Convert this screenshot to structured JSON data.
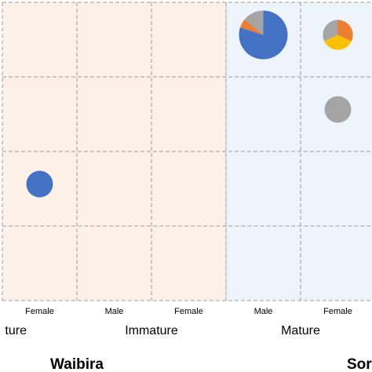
{
  "chart_data": {
    "type": "scatter",
    "subtype": "pie-bubble matrix",
    "columns": [
      {
        "label": "Female",
        "group": "Immature",
        "site": "Waibira",
        "background": "#fdf1e7"
      },
      {
        "label": "Male",
        "group": "Immature",
        "site": "Waibira",
        "background": "#fdf1e7"
      },
      {
        "label": "Female",
        "group": "Immature",
        "site": "Waibira",
        "background": "#fdf1e7"
      },
      {
        "label": "Male",
        "group": "Mature",
        "site": "Waibira",
        "background": "#eef4fb"
      },
      {
        "label": "Female",
        "group": "Mature",
        "site": "Waibira",
        "background": "#eef4fb"
      }
    ],
    "group_labels": [
      {
        "label": "ture",
        "columns": [
          0
        ]
      },
      {
        "label": "Immature",
        "columns": [
          1,
          2
        ]
      },
      {
        "label": "Mature",
        "columns": [
          3,
          4
        ]
      }
    ],
    "site_labels": [
      {
        "label": "Waibira",
        "columns": [
          0,
          1
        ]
      },
      {
        "label": "Sor",
        "columns": [
          4
        ]
      }
    ],
    "row_count": 4,
    "grid": true,
    "pie_colors": {
      "blue": "#4472c4",
      "orange": "#ed7d31",
      "gray": "#a5a5a5",
      "yellow": "#ffc000"
    },
    "pies": [
      {
        "column": 3,
        "row": 0,
        "size": 1.0,
        "slices": [
          {
            "color": "blue",
            "value": 80
          },
          {
            "color": "orange",
            "value": 6
          },
          {
            "color": "gray",
            "value": 14
          }
        ]
      },
      {
        "column": 4,
        "row": 0,
        "size": 0.38,
        "slices": [
          {
            "color": "orange",
            "value": 32
          },
          {
            "color": "yellow",
            "value": 36
          },
          {
            "color": "gray",
            "value": 32
          }
        ]
      },
      {
        "column": 4,
        "row": 1,
        "size": 0.3,
        "slices": [
          {
            "color": "gray",
            "value": 100
          }
        ]
      },
      {
        "column": 0,
        "row": 2,
        "size": 0.3,
        "slices": [
          {
            "color": "blue",
            "value": 100
          }
        ]
      }
    ]
  }
}
